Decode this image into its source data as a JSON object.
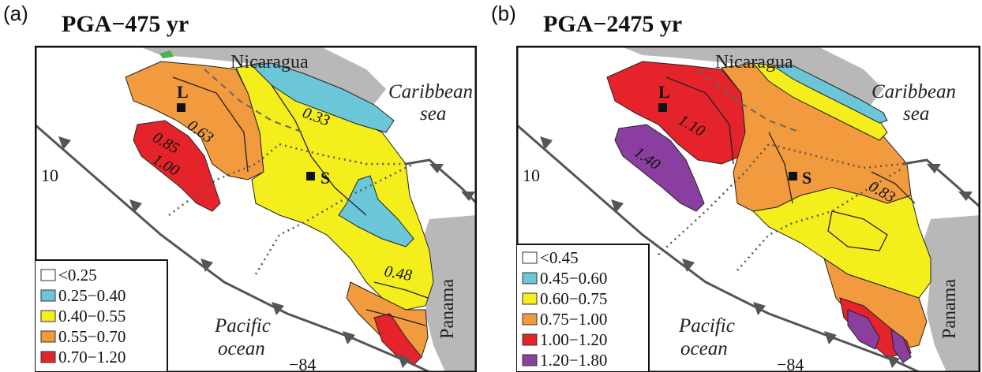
{
  "colors": {
    "white": "#ffffff",
    "cyan": "#6bc6d8",
    "yellow": "#f4ee1c",
    "orange": "#f19a3e",
    "red": "#e4232b",
    "purple": "#8a3fa0",
    "land_gray": "#b8b8b8",
    "green": "#4caf50"
  },
  "panel_a": {
    "letter": "(a)",
    "title": "PGA−475 yr",
    "country_north": "Nicaragua",
    "country_south": "Panama",
    "sea_label": [
      "Caribbean",
      "sea"
    ],
    "ocean_label": [
      "Pacific",
      "ocean"
    ],
    "lat_tick": "10",
    "lon_tick": "−84",
    "city_l": "L",
    "city_s": "S",
    "contours": [
      "0.63",
      "0.33",
      "0.85",
      "1.00",
      "0.48"
    ],
    "legend": [
      {
        "label": "<0.25",
        "color": "white"
      },
      {
        "label": "0.25−0.40",
        "color": "cyan"
      },
      {
        "label": "0.40−0.55",
        "color": "yellow"
      },
      {
        "label": "0.55−0.70",
        "color": "orange"
      },
      {
        "label": "0.70−1.20",
        "color": "red"
      }
    ]
  },
  "panel_b": {
    "letter": "(b)",
    "title": "PGA−2475 yr",
    "country_north": "Nicaragua",
    "country_south": "Panama",
    "sea_label": [
      "Caribbean",
      "sea"
    ],
    "ocean_label": [
      "Pacific",
      "ocean"
    ],
    "lat_tick": "10",
    "lon_tick": "−84",
    "city_l": "L",
    "city_s": "S",
    "contours": [
      "1.10",
      "1.40",
      "0.83"
    ],
    "legend": [
      {
        "label": "<0.45",
        "color": "white"
      },
      {
        "label": "0.45−0.60",
        "color": "cyan"
      },
      {
        "label": "0.60−0.75",
        "color": "yellow"
      },
      {
        "label": "0.75−1.00",
        "color": "orange"
      },
      {
        "label": "1.00−1.20",
        "color": "red"
      },
      {
        "label": "1.20−1.80",
        "color": "purple"
      }
    ]
  }
}
